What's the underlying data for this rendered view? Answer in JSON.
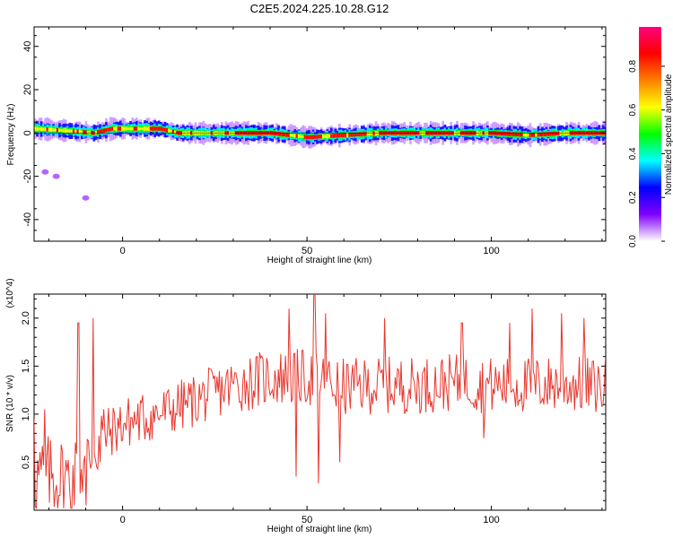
{
  "title": "C2E5.2024.225.10.28.G12",
  "chart_data": [
    {
      "type": "heatmap",
      "xlabel": "Height of straight line (km)",
      "ylabel": "Frequency (Hz)",
      "xlim": [
        -24,
        131
      ],
      "ylim": [
        -50,
        49
      ],
      "xticks": [
        0,
        50,
        100
      ],
      "yticks": [
        -40,
        -20,
        0,
        20,
        40
      ],
      "colorbar": {
        "label": "Normalized spectral amplitude",
        "range": [
          0,
          0.98
        ],
        "ticks": [
          0.0,
          0.2,
          0.4,
          0.6,
          0.8
        ],
        "colors": [
          "#ffffff",
          "#8000ff",
          "#0000ff",
          "#00ffff",
          "#00ff00",
          "#ffff00",
          "#ff8000",
          "#ff0000",
          "#ff0080"
        ]
      },
      "band": {
        "center_freq": [
          [
            -24,
            2
          ],
          [
            -15,
            1
          ],
          [
            -8,
            0
          ],
          [
            -3,
            2
          ],
          [
            5,
            2
          ],
          [
            10,
            2
          ],
          [
            15,
            0
          ],
          [
            25,
            0
          ],
          [
            40,
            0
          ],
          [
            50,
            -2
          ],
          [
            60,
            -1
          ],
          [
            70,
            0
          ],
          [
            80,
            0
          ],
          [
            90,
            0
          ],
          [
            100,
            0
          ],
          [
            110,
            -1
          ],
          [
            120,
            0
          ],
          [
            131,
            0
          ]
        ],
        "peak_segments": [
          [
            -7,
            -3
          ],
          [
            7,
            12
          ],
          [
            14,
            16
          ],
          [
            30,
            45
          ],
          [
            49,
            54
          ],
          [
            56,
            60
          ],
          [
            61,
            66
          ],
          [
            69,
            80
          ],
          [
            82,
            88
          ],
          [
            91,
            95
          ],
          [
            99,
            108
          ],
          [
            112,
            118
          ],
          [
            121,
            131
          ]
        ]
      },
      "outliers": [
        {
          "x": -21,
          "y": -18
        },
        {
          "x": -18,
          "y": -20
        },
        {
          "x": -10,
          "y": -30
        }
      ]
    },
    {
      "type": "line",
      "xlabel": "Height of straight line (km)",
      "ylabel": "SNR (10 * v/v)",
      "y_multiplier": "(x10^4)",
      "xlim": [
        -24,
        131
      ],
      "ylim": [
        0.0,
        2.25
      ],
      "xticks": [
        0,
        50,
        100
      ],
      "yticks": [
        0.5,
        1.0,
        1.5,
        2.0
      ],
      "series": [
        {
          "color": "#e8372e",
          "trend": [
            [
              -24,
              0.35
            ],
            [
              -17,
              0.35
            ],
            [
              -14,
              0.3
            ],
            [
              -11,
              0.45
            ],
            [
              -6,
              0.75
            ],
            [
              0,
              0.9
            ],
            [
              10,
              1.0
            ],
            [
              20,
              1.15
            ],
            [
              30,
              1.3
            ],
            [
              40,
              1.38
            ],
            [
              50,
              1.38
            ],
            [
              60,
              1.28
            ],
            [
              70,
              1.3
            ],
            [
              80,
              1.3
            ],
            [
              90,
              1.33
            ],
            [
              100,
              1.3
            ],
            [
              110,
              1.3
            ],
            [
              120,
              1.32
            ],
            [
              131,
              1.28
            ]
          ],
          "peaks": [
            [
              -24,
              0.95
            ],
            [
              -21,
              1.05
            ],
            [
              -12,
              1.95
            ],
            [
              -8,
              2.0
            ],
            [
              45,
              2.1
            ],
            [
              52,
              2.27
            ],
            [
              55,
              2.05
            ],
            [
              59,
              1.95
            ],
            [
              71,
              2.0
            ],
            [
              92,
              1.95
            ],
            [
              105,
              1.95
            ],
            [
              111,
              2.1
            ],
            [
              119,
              2.05
            ],
            [
              125,
              2.0
            ]
          ],
          "troughs": [
            [
              -13,
              0.05
            ],
            [
              -10,
              0.05
            ],
            [
              -6,
              0.5
            ],
            [
              47,
              0.35
            ],
            [
              53,
              0.28
            ],
            [
              59,
              0.5
            ],
            [
              98,
              0.75
            ]
          ]
        }
      ]
    }
  ]
}
